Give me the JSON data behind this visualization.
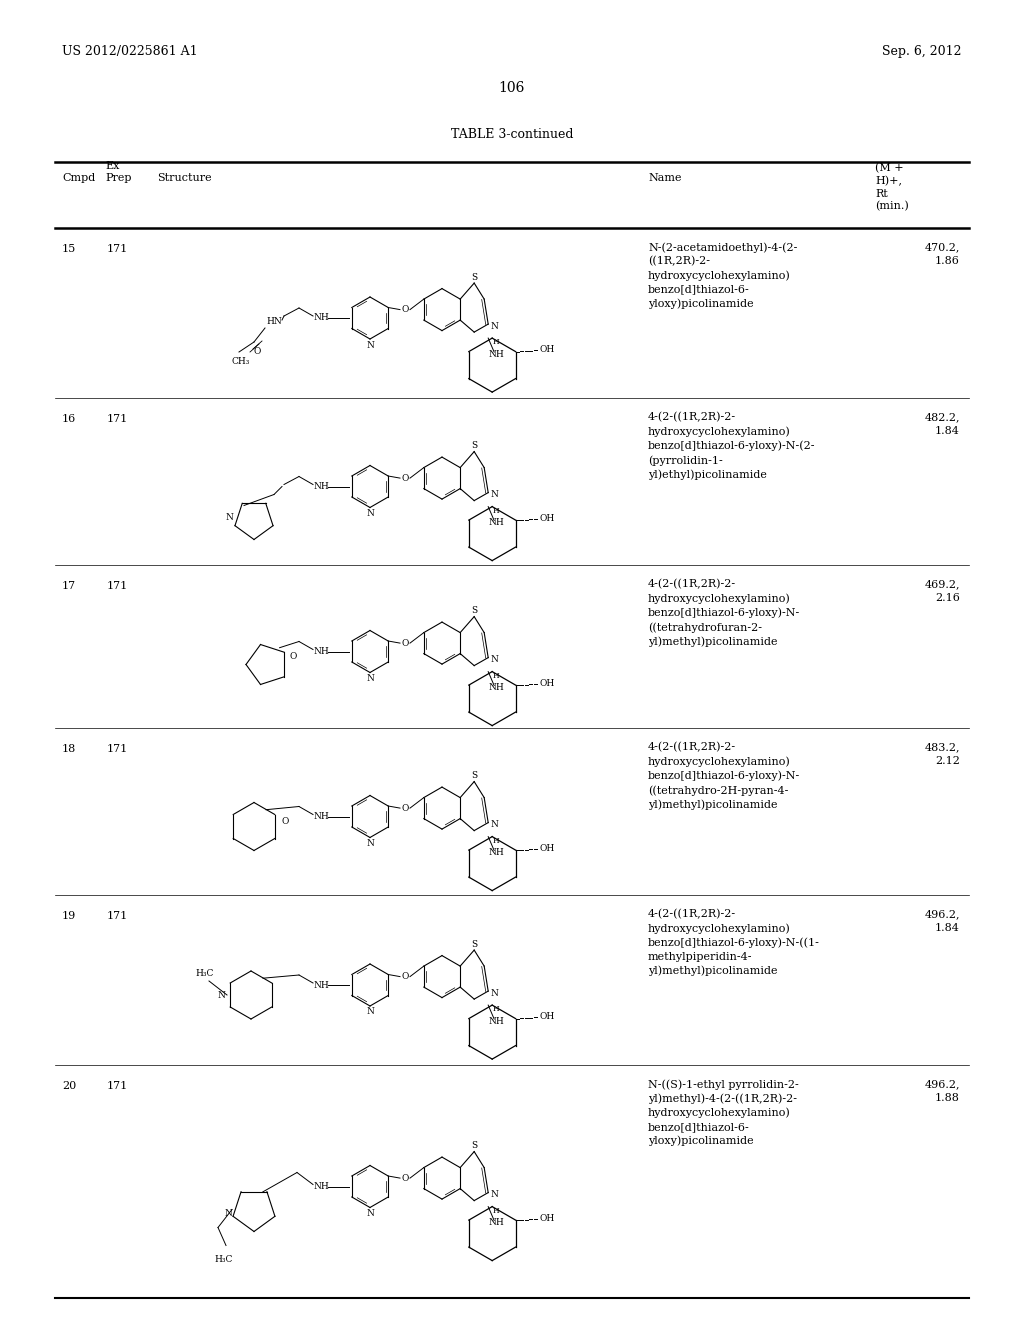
{
  "background_color": "#ffffff",
  "header_left": "US 2012/0225861 A1",
  "header_right": "Sep. 6, 2012",
  "page_number": "106",
  "table_title": "TABLE 3-continued",
  "rows": [
    {
      "cmpd": "15",
      "prep": "171",
      "name": "N-(2-acetamidoethyl)-4-(2-\n((1R,2R)-2-\nhydroxycyclohexylamino)\nbenzo[d]thiazol-6-\nyloxy)picolinamide",
      "ms": "470.2,\n1.86"
    },
    {
      "cmpd": "16",
      "prep": "171",
      "name": "4-(2-((1R,2R)-2-\nhydroxycyclohexylamino)\nbenzo[d]thiazol-6-yloxy)-N-(2-\n(pyrrolidin-1-\nyl)ethyl)picolinamide",
      "ms": "482.2,\n1.84"
    },
    {
      "cmpd": "17",
      "prep": "171",
      "name": "4-(2-((1R,2R)-2-\nhydroxycyclohexylamino)\nbenzo[d]thiazol-6-yloxy)-N-\n((tetrahydrofuran-2-\nyl)methyl)picolinamide",
      "ms": "469.2,\n2.16"
    },
    {
      "cmpd": "18",
      "prep": "171",
      "name": "4-(2-((1R,2R)-2-\nhydroxycyclohexylamino)\nbenzo[d]thiazol-6-yloxy)-N-\n((tetrahydro-2H-pyran-4-\nyl)methyl)picolinamide",
      "ms": "483.2,\n2.12"
    },
    {
      "cmpd": "19",
      "prep": "171",
      "name": "4-(2-((1R,2R)-2-\nhydroxycyclohexylamino)\nbenzo[d]thiazol-6-yloxy)-N-((1-\nmethylpiperidin-4-\nyl)methyl)picolinamide",
      "ms": "496.2,\n1.84"
    },
    {
      "cmpd": "20",
      "prep": "171",
      "name": "N-((S)-1-ethyl pyrrolidin-2-\nyl)methyl)-4-(2-((1R,2R)-2-\nhydroxycyclohexylamino)\nbenzo[d]thiazol-6-\nyloxy)picolinamide",
      "ms": "496.2,\n1.88"
    }
  ]
}
